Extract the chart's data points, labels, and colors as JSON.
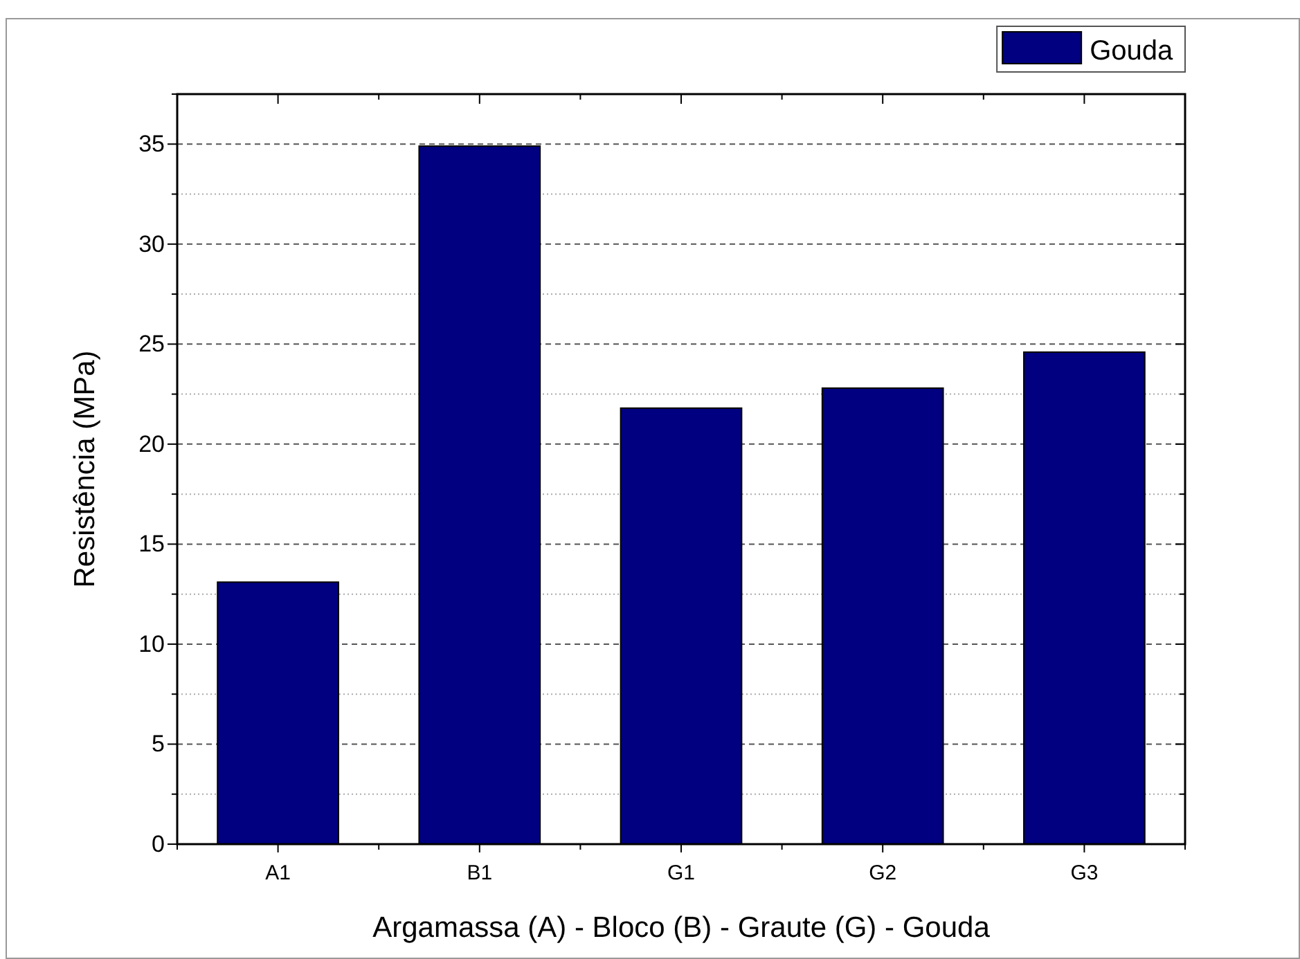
{
  "chart_data": {
    "type": "bar",
    "xlabel": "Argamassa (A) - Bloco (B) - Graute (G) - Gouda",
    "ylabel": "Resistência (MPa)",
    "categories": [
      "A1",
      "B1",
      "G1",
      "G2",
      "G3"
    ],
    "series": [
      {
        "name": "Gouda",
        "color": "#000080",
        "values": [
          13.1,
          34.9,
          21.8,
          22.8,
          24.6
        ]
      }
    ],
    "ylim": [
      0,
      37.5
    ],
    "yticks": [
      0,
      {
        "value": 2.5,
        "label": null
      },
      5,
      {
        "value": 7.5,
        "label": null
      },
      10,
      {
        "value": 12.5,
        "label": null
      },
      15,
      {
        "value": 17.5,
        "label": null
      },
      20,
      {
        "value": 22.5,
        "label": null
      },
      25,
      {
        "value": 27.5,
        "label": null
      },
      30,
      {
        "value": 32.5,
        "label": null
      },
      35,
      {
        "value": 37.5,
        "label": null
      }
    ],
    "grid": "y",
    "legend": "top right"
  }
}
